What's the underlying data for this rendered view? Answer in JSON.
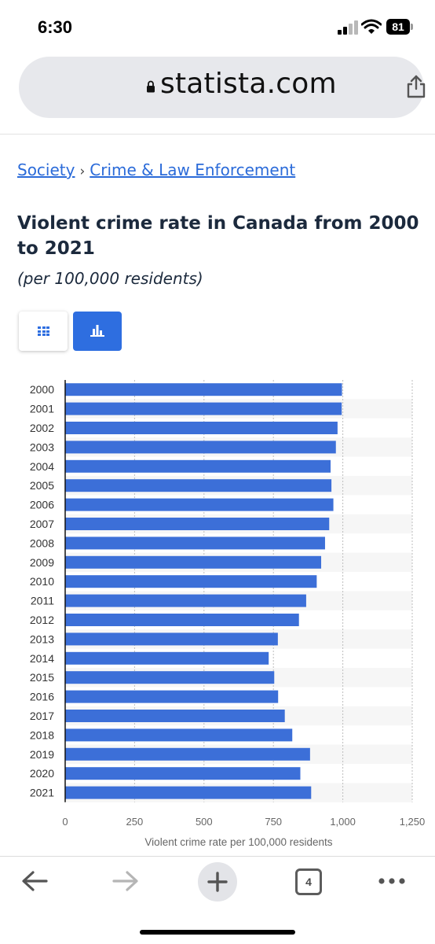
{
  "status_bar": {
    "time": "6:30",
    "battery": "81",
    "icons": [
      "signal-icon",
      "wifi-icon",
      "battery-icon"
    ]
  },
  "browser": {
    "url": "statista.com",
    "icons": [
      "lock-icon",
      "share-icon"
    ]
  },
  "breadcrumb": {
    "items": [
      "Society",
      "Crime & Law Enforcement"
    ],
    "separator": "›"
  },
  "page": {
    "title": "Violent crime rate in Canada from 2000 to 2021",
    "subtitle": "(per 100,000 residents)"
  },
  "view_toggles": [
    {
      "name": "table-view",
      "icon": "grid-icon",
      "active": false
    },
    {
      "name": "chart-view",
      "icon": "bar-chart-icon",
      "active": true
    }
  ],
  "colors": {
    "bar": "#3c6fd8",
    "accent": "#2e6ee0",
    "link": "#2b6bd9",
    "title": "#1c2a3d"
  },
  "chart_data": {
    "type": "bar",
    "orientation": "horizontal",
    "categories": [
      "2000",
      "2001",
      "2002",
      "2003",
      "2004",
      "2005",
      "2006",
      "2007",
      "2008",
      "2009",
      "2010",
      "2011",
      "2012",
      "2013",
      "2014",
      "2015",
      "2016",
      "2017",
      "2018",
      "2019",
      "2020",
      "2021"
    ],
    "values": [
      997,
      996,
      981,
      975,
      956,
      959,
      966,
      951,
      936,
      922,
      906,
      868,
      842,
      766,
      733,
      753,
      767,
      791,
      818,
      882,
      847,
      886
    ],
    "xlabel": "Violent crime rate per 100,000 residents",
    "ylabel": "",
    "xlim": [
      0,
      1250
    ],
    "ticks": [
      0,
      250,
      500,
      750,
      1000,
      1250
    ],
    "tick_labels": [
      "0",
      "250",
      "500",
      "750",
      "1,000",
      "1,250"
    ],
    "grid": "vertical-dotted"
  },
  "toolbar": {
    "tabs_count": "4",
    "icons": [
      "back-arrow-icon",
      "forward-arrow-icon",
      "plus-icon",
      "tabs-icon",
      "more-icon"
    ]
  }
}
